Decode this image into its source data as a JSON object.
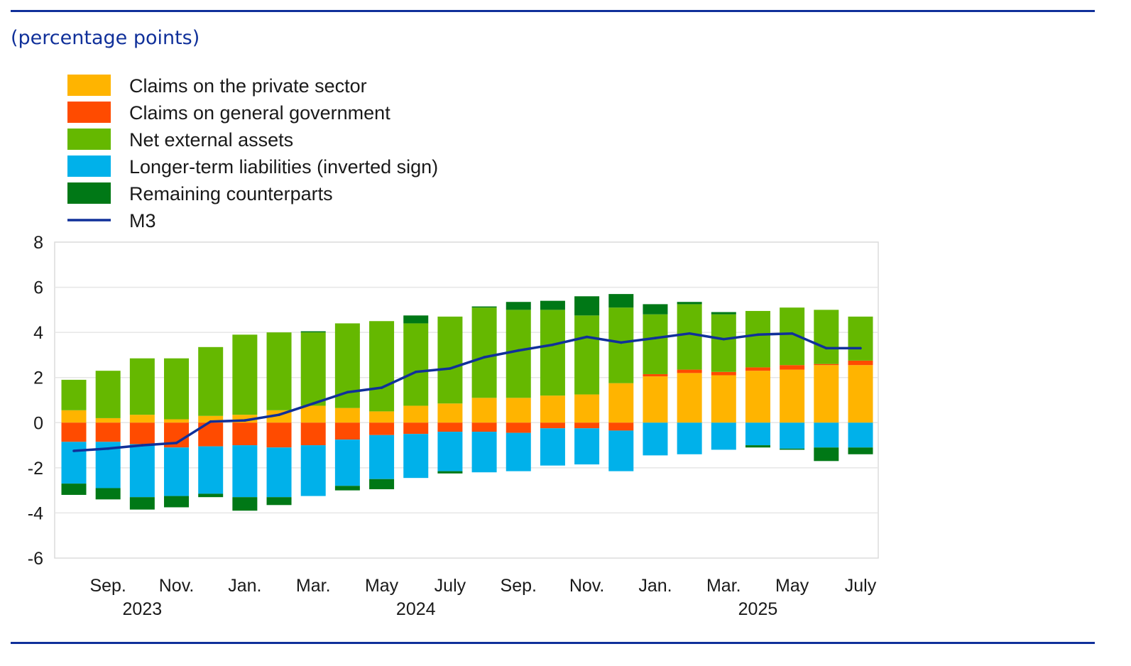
{
  "subtitle": "(percentage points)",
  "colors": {
    "rule": "#10309a",
    "claims_private": "#ffb400",
    "claims_government": "#ff4b00",
    "net_external": "#65b800",
    "longer_term": "#00b1ea",
    "remaining": "#007816",
    "m3": "#10309a"
  },
  "chart_data": {
    "type": "bar",
    "stacked": true,
    "title": "",
    "subtitle": "(percentage points)",
    "xlabel": "",
    "ylabel": "",
    "ylim": [
      -6,
      8
    ],
    "y_ticks": [
      8,
      6,
      4,
      2,
      0,
      -2,
      -4,
      -6
    ],
    "grid": true,
    "legend_position": "top-left",
    "categories": [
      "Aug. 2023",
      "Sep. 2023",
      "Oct. 2023",
      "Nov. 2023",
      "Dec. 2023",
      "Jan. 2024",
      "Feb. 2024",
      "Mar. 2024",
      "Apr. 2024",
      "May 2024",
      "June 2024",
      "July 2024",
      "Aug. 2024",
      "Sep. 2024",
      "Oct. 2024",
      "Nov. 2024",
      "Dec. 2024",
      "Jan. 2025",
      "Feb. 2025",
      "Mar. 2025",
      "Apr. 2025",
      "May 2025",
      "June 2025",
      "July 2025"
    ],
    "x_tick_labels": [
      {
        "index": 1,
        "label": "Sep."
      },
      {
        "index": 3,
        "label": "Nov."
      },
      {
        "index": 5,
        "label": "Jan."
      },
      {
        "index": 7,
        "label": "Mar."
      },
      {
        "index": 9,
        "label": "May"
      },
      {
        "index": 11,
        "label": "July"
      },
      {
        "index": 13,
        "label": "Sep."
      },
      {
        "index": 15,
        "label": "Nov."
      },
      {
        "index": 17,
        "label": "Jan."
      },
      {
        "index": 19,
        "label": "Mar."
      },
      {
        "index": 21,
        "label": "May"
      },
      {
        "index": 23,
        "label": "July"
      }
    ],
    "year_labels": [
      {
        "center_index": 2,
        "label": "2023"
      },
      {
        "center_index": 10,
        "label": "2024"
      },
      {
        "center_index": 20,
        "label": "2025"
      }
    ],
    "series": [
      {
        "key": "claims_private",
        "name": "Claims on the private sector",
        "values": [
          0.55,
          0.2,
          0.35,
          0.15,
          0.3,
          0.35,
          0.55,
          0.75,
          0.65,
          0.5,
          0.75,
          0.85,
          1.1,
          1.1,
          1.2,
          1.25,
          1.75,
          2.05,
          2.2,
          2.1,
          2.3,
          2.35,
          2.55,
          2.55
        ]
      },
      {
        "key": "claims_government",
        "name": "Claims on general government",
        "values": [
          -0.85,
          -0.85,
          -0.95,
          -1.1,
          -1.05,
          -1.0,
          -1.1,
          -1.0,
          -0.75,
          -0.55,
          -0.5,
          -0.4,
          -0.4,
          -0.45,
          -0.25,
          -0.25,
          -0.35,
          0.1,
          0.15,
          0.15,
          0.15,
          0.2,
          0.05,
          0.2
        ]
      },
      {
        "key": "net_external",
        "name": "Net external assets",
        "values": [
          1.35,
          2.1,
          2.5,
          2.7,
          3.05,
          3.55,
          3.45,
          3.25,
          3.75,
          4.0,
          3.65,
          3.85,
          4.0,
          3.9,
          3.8,
          3.5,
          3.35,
          2.65,
          2.9,
          2.55,
          2.5,
          2.55,
          2.4,
          1.95
        ]
      },
      {
        "key": "longer_term",
        "name": "Longer-term liabilities (inverted sign)",
        "values": [
          -1.85,
          -2.05,
          -2.35,
          -2.15,
          -2.1,
          -2.3,
          -2.2,
          -2.25,
          -2.05,
          -1.95,
          -1.95,
          -1.75,
          -1.8,
          -1.7,
          -1.65,
          -1.6,
          -1.8,
          -1.45,
          -1.4,
          -1.2,
          -1.0,
          -1.15,
          -1.1,
          -1.1
        ]
      },
      {
        "key": "remaining",
        "name": "Remaining counterparts",
        "values": [
          -0.5,
          -0.5,
          -0.55,
          -0.5,
          -0.15,
          -0.6,
          -0.35,
          0.05,
          -0.2,
          -0.45,
          0.35,
          -0.1,
          0.05,
          0.35,
          0.4,
          0.85,
          0.6,
          0.45,
          0.1,
          0.1,
          -0.1,
          -0.05,
          -0.6,
          -0.3
        ]
      }
    ],
    "line_series": {
      "key": "m3",
      "name": "M3",
      "values": [
        -1.25,
        -1.15,
        -1.0,
        -0.9,
        0.05,
        0.1,
        0.35,
        0.85,
        1.35,
        1.55,
        2.25,
        2.4,
        2.9,
        3.2,
        3.45,
        3.8,
        3.55,
        3.75,
        3.95,
        3.7,
        3.9,
        3.95,
        3.3,
        3.3
      ]
    }
  }
}
